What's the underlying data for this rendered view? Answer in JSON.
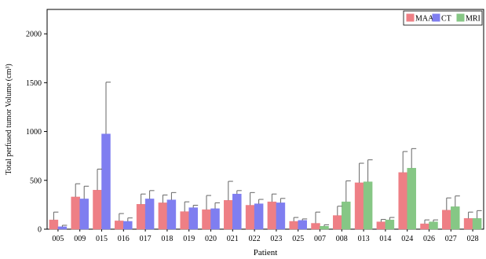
{
  "chart_data": {
    "type": "bar",
    "xlabel": "Patient",
    "ylabel": "Total perfused tumor Volume (cm³)",
    "ylim": [
      0,
      2250
    ],
    "yticks": [
      0,
      500,
      1000,
      1500,
      2000
    ],
    "grid": false,
    "legend_position": "top-right",
    "categories": [
      "005",
      "009",
      "015",
      "016",
      "017",
      "018",
      "019",
      "020",
      "021",
      "022",
      "023",
      "025",
      "007",
      "008",
      "013",
      "014",
      "024",
      "026",
      "027",
      "028"
    ],
    "series": [
      {
        "name": "MAA",
        "color": "#ee7f85",
        "values": [
          95,
          330,
          400,
          85,
          255,
          270,
          180,
          200,
          295,
          245,
          280,
          80,
          60,
          140,
          475,
          75,
          580,
          55,
          195,
          110
        ],
        "errors": [
          80,
          135,
          215,
          75,
          105,
          80,
          100,
          145,
          195,
          130,
          80,
          40,
          115,
          95,
          200,
          25,
          215,
          40,
          125,
          65
        ]
      },
      {
        "name": "CT",
        "color": "#7f7ef0",
        "values": [
          25,
          310,
          975,
          80,
          310,
          300,
          220,
          210,
          360,
          260,
          270,
          90,
          null,
          null,
          null,
          null,
          null,
          null,
          null,
          null
        ],
        "errors": [
          15,
          130,
          530,
          35,
          85,
          75,
          25,
          60,
          35,
          45,
          45,
          15,
          null,
          null,
          null,
          null,
          null,
          null,
          null,
          null
        ]
      },
      {
        "name": "MRI",
        "color": "#86c785",
        "values": [
          null,
          null,
          null,
          null,
          null,
          null,
          null,
          null,
          null,
          null,
          null,
          null,
          30,
          280,
          485,
          95,
          625,
          75,
          230,
          110
        ],
        "errors": [
          null,
          null,
          null,
          null,
          null,
          null,
          null,
          null,
          null,
          null,
          null,
          null,
          15,
          215,
          225,
          25,
          200,
          20,
          110,
          80
        ]
      }
    ]
  }
}
